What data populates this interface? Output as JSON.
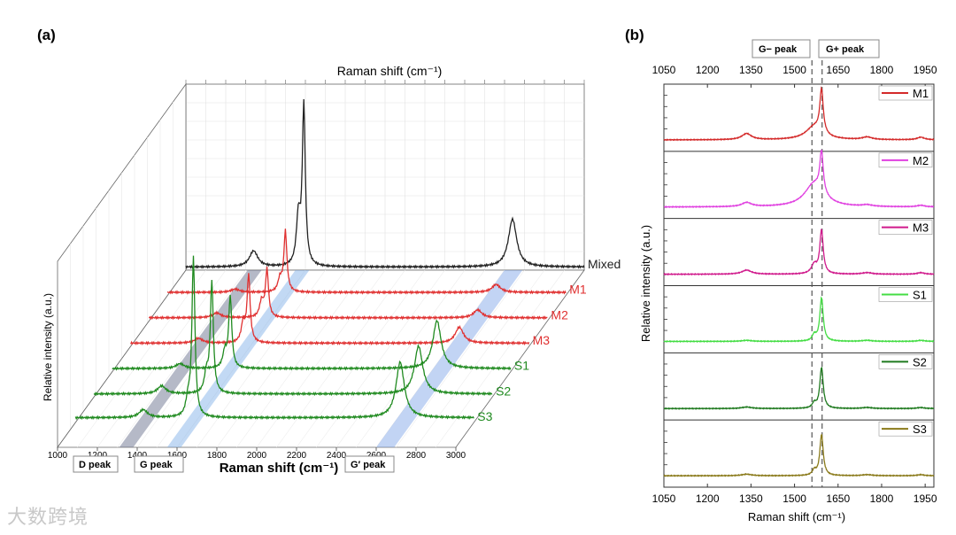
{
  "watermark": "大数跨境",
  "panel_a": {
    "label": "(a)",
    "top_axis_label": "Raman shift (cm⁻¹)",
    "x_axis_label": "Raman shift (cm⁻¹)",
    "y_axis_label": "Relative intensity (a.u.)",
    "peak_labels": [
      "D peak",
      "G peak",
      "G′ peak"
    ]
  },
  "panel_b": {
    "label": "(b)",
    "gminus_label": "G− peak",
    "gplus_label": "G+ peak",
    "x_axis_label": "Raman shift (cm⁻¹)",
    "y_axis_label": "Relative intensity (a.u.)"
  },
  "chart_data": [
    {
      "type": "line",
      "title": "",
      "style": "3d waterfall",
      "xlabel": "Raman shift (cm⁻¹)",
      "ylabel": "Relative intensity (a.u.)",
      "xlim": [
        1000,
        3000
      ],
      "xticks": [
        1000,
        1200,
        1400,
        1600,
        1800,
        2000,
        2200,
        2400,
        2600,
        2800,
        3000
      ],
      "series": [
        {
          "name": "Mixed",
          "color": "#222222",
          "baseline": 0.02,
          "D": 0.1,
          "Gm": 0.3,
          "Gp": 1.0,
          "Gprime": 0.3,
          "Gprime_pos": 2640
        },
        {
          "name": "M1",
          "color": "#e03030",
          "baseline": 0.02,
          "D": 0.02,
          "Gm": 0.08,
          "Gp": 0.38,
          "Gprime": 0.05,
          "Gprime_pos": 2650
        },
        {
          "name": "M2",
          "color": "#e03030",
          "baseline": 0.02,
          "D": 0.03,
          "Gm": 0.1,
          "Gp": 0.3,
          "Gprime": 0.05,
          "Gprime_pos": 2650
        },
        {
          "name": "M3",
          "color": "#e03030",
          "baseline": 0.02,
          "D": 0.03,
          "Gm": 0.12,
          "Gp": 0.42,
          "Gprime": 0.1,
          "Gprime_pos": 2650
        },
        {
          "name": "S1",
          "color": "#1f8a1f",
          "baseline": 0.02,
          "D": 0.03,
          "Gm": 0.1,
          "Gp": 0.45,
          "Gprime": 0.3,
          "Gprime_pos": 2630
        },
        {
          "name": "S2",
          "color": "#1f8a1f",
          "baseline": 0.02,
          "D": 0.05,
          "Gm": 0.12,
          "Gp": 0.7,
          "Gprime": 0.3,
          "Gprime_pos": 2630
        },
        {
          "name": "S3",
          "color": "#1f8a1f",
          "baseline": 0.03,
          "D": 0.05,
          "Gm": 0.1,
          "Gp": 1.0,
          "Gprime": 0.35,
          "Gprime_pos": 2630
        }
      ],
      "bands": [
        {
          "name": "D peak",
          "from": 1310,
          "to": 1380
        },
        {
          "name": "G peak",
          "from": 1550,
          "to": 1620
        },
        {
          "name": "G′ peak",
          "from": 2600,
          "to": 2690
        }
      ]
    },
    {
      "type": "line",
      "title": "",
      "style": "stacked panels",
      "xlabel": "Raman shift (cm⁻¹)",
      "ylabel": "Relative intensity (a.u.)",
      "xlim": [
        1050,
        1980
      ],
      "xticks": [
        1050,
        1200,
        1350,
        1500,
        1650,
        1800,
        1950
      ],
      "reference_lines": [
        1560,
        1595
      ],
      "series": [
        {
          "name": "M1",
          "color": "#d42a2a",
          "D": 0.12,
          "Gm": 0.25,
          "Gm_width": 35,
          "Gp": 0.85,
          "extra": 0.05
        },
        {
          "name": "M2",
          "color": "#e040e0",
          "D": 0.08,
          "Gm": 0.45,
          "Gm_width": 40,
          "Gp": 0.8,
          "extra": 0.03
        },
        {
          "name": "M3",
          "color": "#d01a8c",
          "D": 0.08,
          "Gm": 0.18,
          "Gm_width": 12,
          "Gp": 0.85,
          "extra": 0.03
        },
        {
          "name": "S1",
          "color": "#44dd44",
          "D": 0.02,
          "Gm": 0.12,
          "Gm_width": 8,
          "Gp": 0.85,
          "extra": 0.02
        },
        {
          "name": "S2",
          "color": "#1f7a1f",
          "D": 0.03,
          "Gm": 0.1,
          "Gm_width": 8,
          "Gp": 0.8,
          "extra": 0.02
        },
        {
          "name": "S3",
          "color": "#8a7a1a",
          "D": 0.03,
          "Gm": 0.1,
          "Gm_width": 8,
          "Gp": 0.8,
          "extra": 0.02
        }
      ]
    }
  ]
}
